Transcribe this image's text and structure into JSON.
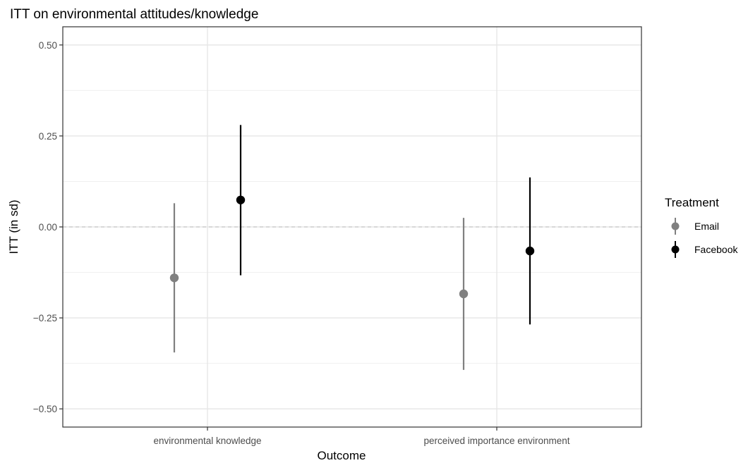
{
  "chart_data": {
    "type": "pointrange",
    "title": "ITT on environmental attitudes/knowledge",
    "xlabel": "Outcome",
    "ylabel": "ITT (in sd)",
    "categories": [
      "environmental knowledge",
      "perceived importance environment"
    ],
    "ylim": [
      -0.55,
      0.55
    ],
    "yticks": [
      0.5,
      0.25,
      0.0,
      -0.25,
      -0.5
    ],
    "ytick_labels": [
      "0.50",
      "0.25",
      "0.00",
      "−0.25",
      "−0.50"
    ],
    "reference_line": 0,
    "grid": true,
    "legend": {
      "title": "Treatment",
      "position": "right"
    },
    "series": [
      {
        "name": "Email",
        "color": "#808080",
        "estimates": [
          -0.14,
          -0.184
        ],
        "lower": [
          -0.345,
          -0.393
        ],
        "upper": [
          0.065,
          0.025
        ]
      },
      {
        "name": "Facebook",
        "color": "#000000",
        "estimates": [
          0.074,
          -0.066
        ],
        "lower": [
          -0.133,
          -0.268
        ],
        "upper": [
          0.28,
          0.136
        ]
      }
    ]
  }
}
